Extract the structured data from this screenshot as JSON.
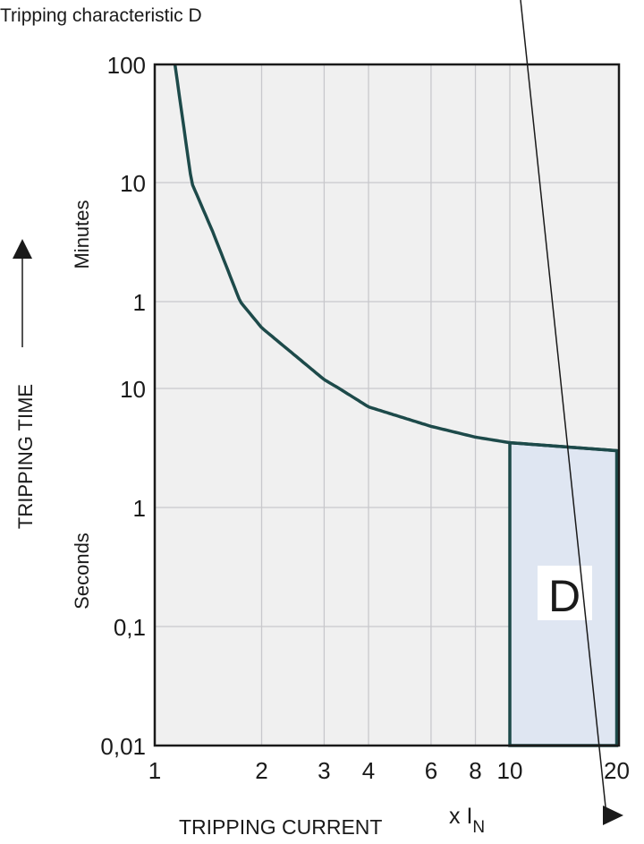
{
  "chart_data": {
    "type": "line",
    "title": "Tripping characteristic D",
    "xlabel": "TRIPPING CURRENT",
    "xunit_prefix": "x I",
    "xunit_sub": "N",
    "ylabel": "TRIPPING TIME",
    "y_unit_labels": {
      "minutes": "Minutes",
      "seconds": "Seconds"
    },
    "x_scale": "log",
    "y_scale": "log",
    "xlim": [
      1,
      20
    ],
    "ylim_seconds": [
      0.01,
      6000
    ],
    "grid": true,
    "x_ticks": [
      {
        "value": 1,
        "label": "1"
      },
      {
        "value": 2,
        "label": "2"
      },
      {
        "value": 3,
        "label": "3"
      },
      {
        "value": 4,
        "label": "4"
      },
      {
        "value": 6,
        "label": "6"
      },
      {
        "value": 8,
        "label": "8"
      },
      {
        "value": 10,
        "label": "10"
      },
      {
        "value": 20,
        "label": "20"
      }
    ],
    "y_ticks": [
      {
        "seconds": 6000,
        "label": "100"
      },
      {
        "seconds": 600,
        "label": "10"
      },
      {
        "seconds": 60,
        "label": "1"
      },
      {
        "seconds": 10,
        "label": "10"
      },
      {
        "seconds": 1,
        "label": "1"
      },
      {
        "seconds": 0.1,
        "label": "0,1"
      },
      {
        "seconds": 0.01,
        "label": "0,01"
      }
    ],
    "curve": {
      "x": [
        1.14,
        1.27,
        1.46,
        1.74,
        2,
        3,
        4,
        6,
        8,
        10,
        20
      ],
      "y_seconds": [
        6000,
        600,
        228,
        60,
        35,
        12,
        7,
        4.8,
        3.9,
        3.5,
        3.0
      ]
    },
    "region": {
      "label": "D",
      "x_from": 10,
      "x_to": 20,
      "y_bottom_seconds": 0.01
    },
    "colors": {
      "curve": "#1d4a4a",
      "plot_bg": "#f0f0f0",
      "grid": "#c8c8cc",
      "region_fill": "#dfe6f2",
      "axis": "#1a1a1a"
    }
  }
}
